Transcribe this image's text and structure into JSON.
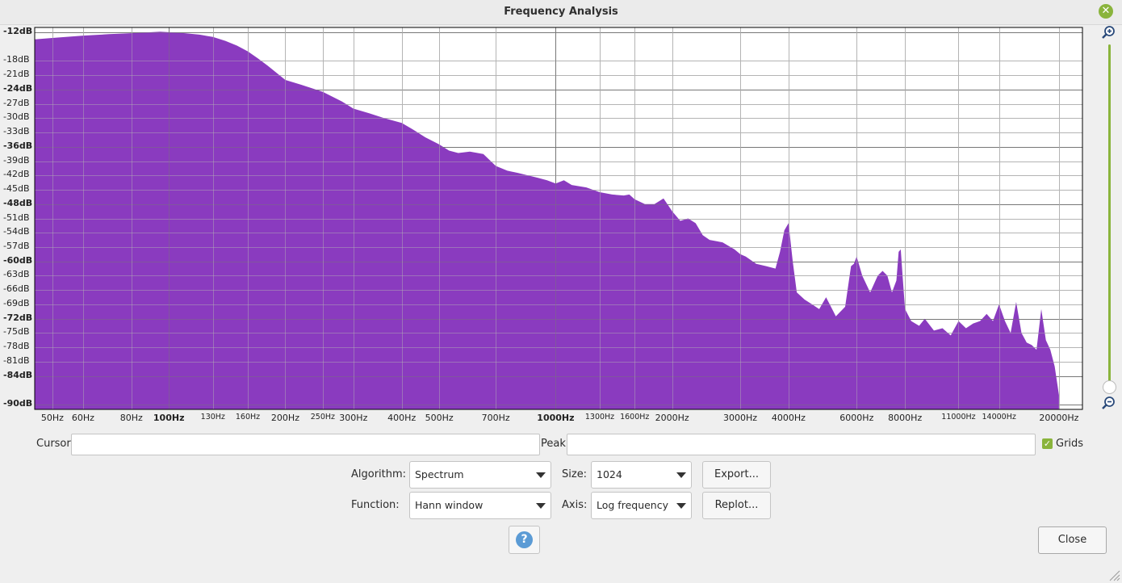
{
  "window": {
    "title": "Frequency Analysis"
  },
  "chart_data": {
    "type": "area",
    "xscale": "log",
    "xlim_hz": [
      45,
      23000
    ],
    "ylim_db": [
      -91,
      -11
    ],
    "grid": true,
    "color": "#8a3bbf",
    "y_ticks": [
      {
        "label": "-12dB",
        "db": -12,
        "bold": true
      },
      {
        "label": "-18dB",
        "db": -18
      },
      {
        "label": "-21dB",
        "db": -21
      },
      {
        "label": "-24dB",
        "db": -24,
        "bold": true
      },
      {
        "label": "-27dB",
        "db": -27
      },
      {
        "label": "-30dB",
        "db": -30
      },
      {
        "label": "-33dB",
        "db": -33
      },
      {
        "label": "-36dB",
        "db": -36,
        "bold": true
      },
      {
        "label": "-39dB",
        "db": -39
      },
      {
        "label": "-42dB",
        "db": -42
      },
      {
        "label": "-45dB",
        "db": -45
      },
      {
        "label": "-48dB",
        "db": -48,
        "bold": true
      },
      {
        "label": "-51dB",
        "db": -51
      },
      {
        "label": "-54dB",
        "db": -54
      },
      {
        "label": "-57dB",
        "db": -57
      },
      {
        "label": "-60dB",
        "db": -60,
        "bold": true
      },
      {
        "label": "-63dB",
        "db": -63
      },
      {
        "label": "-66dB",
        "db": -66
      },
      {
        "label": "-69dB",
        "db": -69
      },
      {
        "label": "-72dB",
        "db": -72,
        "bold": true
      },
      {
        "label": "-75dB",
        "db": -75
      },
      {
        "label": "-78dB",
        "db": -78
      },
      {
        "label": "-81dB",
        "db": -81
      },
      {
        "label": "-84dB",
        "db": -84,
        "bold": true
      },
      {
        "label": "-90dB",
        "db": -90,
        "bold": true
      }
    ],
    "x_ticks": [
      {
        "label": "50Hz",
        "hz": 50
      },
      {
        "label": "60Hz",
        "hz": 60
      },
      {
        "label": "80Hz",
        "hz": 80
      },
      {
        "label": "100Hz",
        "hz": 100,
        "bold": true
      },
      {
        "label": "130Hz",
        "hz": 130,
        "small": true
      },
      {
        "label": "160Hz",
        "hz": 160,
        "small": true
      },
      {
        "label": "200Hz",
        "hz": 200
      },
      {
        "label": "250Hz",
        "hz": 250,
        "small": true
      },
      {
        "label": "300Hz",
        "hz": 300
      },
      {
        "label": "400Hz",
        "hz": 400
      },
      {
        "label": "500Hz",
        "hz": 500
      },
      {
        "label": "700Hz",
        "hz": 700
      },
      {
        "label": "1000Hz",
        "hz": 1000,
        "bold": true
      },
      {
        "label": "1300Hz",
        "hz": 1300,
        "small": true
      },
      {
        "label": "1600Hz",
        "hz": 1600,
        "small": true
      },
      {
        "label": "2000Hz",
        "hz": 2000
      },
      {
        "label": "3000Hz",
        "hz": 3000
      },
      {
        "label": "4000Hz",
        "hz": 4000
      },
      {
        "label": "6000Hz",
        "hz": 6000
      },
      {
        "label": "8000Hz",
        "hz": 8000
      },
      {
        "label": "11000Hz",
        "hz": 11000,
        "small": true
      },
      {
        "label": "14000Hz",
        "hz": 14000,
        "small": true
      },
      {
        "label": "20000Hz",
        "hz": 20000
      }
    ],
    "spectrum_hz": [
      45,
      50,
      60,
      70,
      80,
      90,
      95,
      100,
      110,
      120,
      130,
      140,
      150,
      160,
      170,
      180,
      200,
      220,
      250,
      280,
      300,
      330,
      360,
      400,
      430,
      460,
      500,
      530,
      560,
      600,
      650,
      700,
      750,
      800,
      900,
      950,
      1000,
      1050,
      1100,
      1200,
      1300,
      1400,
      1500,
      1550,
      1600,
      1700,
      1800,
      1900,
      2000,
      2100,
      2200,
      2300,
      2400,
      2500,
      2700,
      2900,
      3000,
      3100,
      3300,
      3500,
      3700,
      3800,
      3900,
      4000,
      4100,
      4200,
      4400,
      4600,
      4800,
      5000,
      5300,
      5600,
      5800,
      5900,
      6000,
      6200,
      6500,
      6800,
      7000,
      7200,
      7400,
      7600,
      7700,
      7800,
      7900,
      8000,
      8300,
      8700,
      9000,
      9500,
      10000,
      10500,
      11000,
      11500,
      12000,
      12500,
      13000,
      13500,
      14000,
      14500,
      15000,
      15500,
      16000,
      16500,
      17000,
      17500,
      18000,
      18500,
      19000,
      19500,
      20000
    ],
    "spectrum_db": [
      -13.5,
      -13.2,
      -12.7,
      -12.4,
      -12.2,
      -12.0,
      -11.9,
      -12.0,
      -12.2,
      -12.5,
      -13.0,
      -13.8,
      -14.8,
      -16.0,
      -17.5,
      -19.0,
      -22.0,
      -23.0,
      -24.5,
      -26.5,
      -28.0,
      -29.0,
      -30.0,
      -31.0,
      -32.5,
      -34.0,
      -35.5,
      -36.8,
      -37.3,
      -37.0,
      -37.5,
      -40.0,
      -41.0,
      -41.5,
      -42.5,
      -43.0,
      -43.7,
      -43.0,
      -44.0,
      -44.5,
      -45.5,
      -46.0,
      -46.2,
      -46.0,
      -47.0,
      -48.0,
      -48.0,
      -46.8,
      -49.5,
      -51.5,
      -51.0,
      -52.0,
      -54.5,
      -55.5,
      -56.0,
      -57.5,
      -58.5,
      -59.0,
      -60.5,
      -61.0,
      -61.5,
      -58.0,
      -53.5,
      -52.0,
      -60.0,
      -66.5,
      -68.0,
      -69.0,
      -70.0,
      -67.5,
      -71.5,
      -69.5,
      -61.0,
      -60.5,
      -59.0,
      -63.0,
      -66.5,
      -63.0,
      -62.0,
      -63.0,
      -66.5,
      -64.0,
      -58.0,
      -57.5,
      -64.0,
      -70.0,
      -72.5,
      -73.5,
      -72.0,
      -74.5,
      -74.0,
      -75.5,
      -72.5,
      -74.0,
      -73.0,
      -72.5,
      -71.0,
      -72.5,
      -69.0,
      -72.5,
      -75.0,
      -68.5,
      -75.0,
      -77.0,
      -77.5,
      -78.5,
      -70.0,
      -76.5,
      -78.5,
      -82.0,
      -88.0
    ]
  },
  "controls": {
    "cursor_label": "Cursor:",
    "cursor_value": "",
    "peak_label": "Peak:",
    "peak_value": "",
    "grids_label": "Grids",
    "grids_checked": true,
    "algorithm_label": "Algorithm:",
    "algorithm_value": "Spectrum",
    "size_label": "Size:",
    "size_value": "1024",
    "export_label": "Export...",
    "function_label": "Function:",
    "function_value": "Hann window",
    "axis_label": "Axis:",
    "axis_value": "Log frequency",
    "replot_label": "Replot...",
    "help_glyph": "?",
    "close_label": "Close"
  },
  "icons": [
    "close-icon",
    "zoom-in-icon",
    "zoom-out-icon",
    "help-icon",
    "resize-grip-icon",
    "checkmark-icon"
  ]
}
